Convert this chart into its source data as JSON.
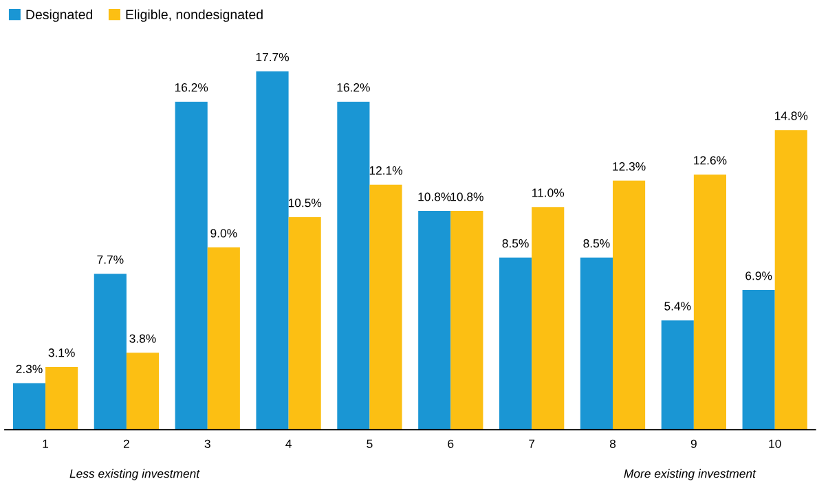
{
  "chart_data": {
    "type": "bar",
    "categories": [
      "1",
      "2",
      "3",
      "4",
      "5",
      "6",
      "7",
      "8",
      "9",
      "10"
    ],
    "series": [
      {
        "name": "Designated",
        "color": "#1a96d4",
        "values": [
          2.3,
          7.7,
          16.2,
          17.7,
          16.2,
          10.8,
          8.5,
          8.5,
          5.4,
          6.9
        ],
        "value_labels": [
          "2.3%",
          "7.7%",
          "16.2%",
          "17.7%",
          "16.2%",
          "10.8%",
          "8.5%",
          "8.5%",
          "5.4%",
          "6.9%"
        ]
      },
      {
        "name": "Eligible, nondesignated",
        "color": "#fcbf13",
        "values": [
          3.1,
          3.8,
          9.0,
          10.5,
          12.1,
          10.8,
          11.0,
          12.3,
          12.6,
          14.8
        ],
        "value_labels": [
          "3.1%",
          "3.8%",
          "9.0%",
          "10.5%",
          "12.1%",
          "10.8%",
          "11.0%",
          "12.3%",
          "12.6%",
          "14.8%"
        ]
      }
    ],
    "annotations": [
      "Less existing investment",
      "More existing investment"
    ],
    "legend": "top left",
    "grid": false,
    "tick_labels": "x"
  }
}
